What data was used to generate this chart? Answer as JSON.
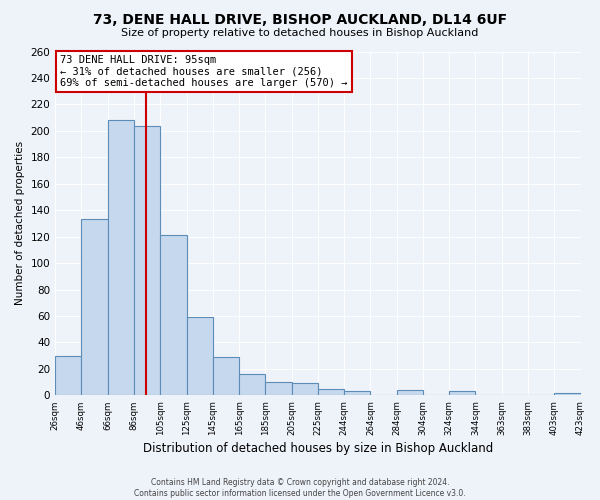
{
  "title": "73, DENE HALL DRIVE, BISHOP AUCKLAND, DL14 6UF",
  "subtitle": "Size of property relative to detached houses in Bishop Auckland",
  "xlabel": "Distribution of detached houses by size in Bishop Auckland",
  "ylabel": "Number of detached properties",
  "bin_labels": [
    "26sqm",
    "46sqm",
    "66sqm",
    "86sqm",
    "105sqm",
    "125sqm",
    "145sqm",
    "165sqm",
    "185sqm",
    "205sqm",
    "225sqm",
    "244sqm",
    "264sqm",
    "284sqm",
    "304sqm",
    "324sqm",
    "344sqm",
    "363sqm",
    "383sqm",
    "403sqm",
    "423sqm"
  ],
  "bar_heights": [
    30,
    133,
    208,
    204,
    121,
    59,
    29,
    16,
    10,
    9,
    5,
    3,
    0,
    4,
    0,
    3,
    0,
    0,
    0,
    2
  ],
  "bar_color": "#c5d8ed",
  "bar_edge_color": "#5b8db8",
  "vline_x": 2,
  "vline_color": "#cc0000",
  "ylim": [
    0,
    260
  ],
  "yticks": [
    0,
    20,
    40,
    60,
    80,
    100,
    120,
    140,
    160,
    180,
    200,
    220,
    240,
    260
  ],
  "annotation_title": "73 DENE HALL DRIVE: 95sqm",
  "annotation_line1": "← 31% of detached houses are smaller (256)",
  "annotation_line2": "69% of semi-detached houses are larger (570) →",
  "annotation_box_color": "#ffffff",
  "annotation_box_edge_color": "#cc0000",
  "footer_line1": "Contains HM Land Registry data © Crown copyright and database right 2024.",
  "footer_line2": "Contains public sector information licensed under the Open Government Licence v3.0.",
  "bg_color": "#eef2f9",
  "grid_color": "#ffffff"
}
